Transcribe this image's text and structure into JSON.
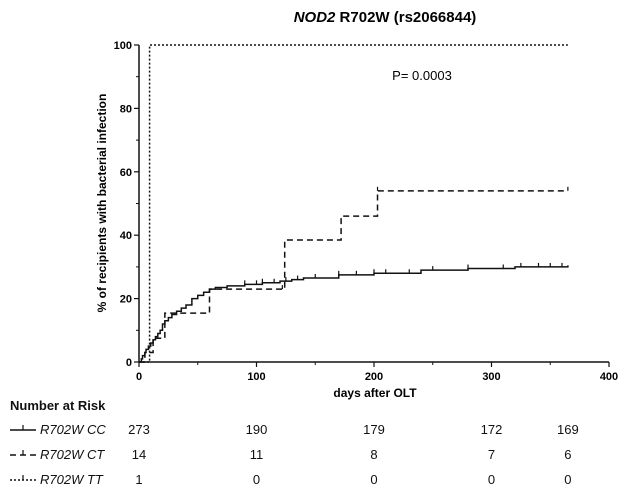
{
  "chart_data": {
    "type": "line",
    "title_gene": "NOD2",
    "title_rest": "R702W (rs2066844)",
    "xlabel": "days after OLT",
    "ylabel": "% of recipients with bacterial infection",
    "xlim": [
      0,
      400
    ],
    "ylim": [
      0,
      100
    ],
    "xticks": [
      "0",
      "100",
      "200",
      "300",
      "400"
    ],
    "yticks": [
      "0",
      "20",
      "40",
      "60",
      "80",
      "100"
    ],
    "annotation": "P= 0.0003",
    "grid": false,
    "series": [
      {
        "name": "R702W CC",
        "style": "solid",
        "x": [
          0,
          2,
          3,
          5,
          6,
          8,
          10,
          12,
          14,
          16,
          18,
          20,
          22,
          25,
          28,
          32,
          36,
          40,
          45,
          50,
          55,
          60,
          65,
          75,
          90,
          105,
          120,
          130,
          140,
          170,
          200,
          240,
          280,
          320,
          365
        ],
        "y": [
          0,
          1,
          2,
          3,
          4,
          5,
          6,
          7,
          8,
          9,
          10,
          12,
          13,
          14,
          15,
          16,
          17,
          18,
          20,
          21,
          22,
          23,
          23.5,
          24,
          24.5,
          25,
          25.5,
          26,
          26.5,
          27.5,
          28,
          29,
          29.5,
          30,
          30.5
        ],
        "censor_x": [
          90,
          100,
          105,
          115,
          125,
          135,
          150,
          170,
          185,
          200,
          210,
          230,
          250,
          280,
          310,
          325,
          340,
          350,
          360
        ]
      },
      {
        "name": "R702W CT",
        "style": "dashed",
        "x": [
          0,
          5,
          12,
          22,
          60,
          122,
          124,
          172,
          203,
          365
        ],
        "y": [
          0,
          3,
          7.5,
          15.4,
          23,
          23,
          38.5,
          46,
          54,
          54
        ],
        "censor_x": [
          122,
          203,
          365
        ]
      },
      {
        "name": "R702W TT",
        "style": "dotted",
        "x": [
          0,
          9,
          9,
          365
        ],
        "y": [
          0,
          0,
          100,
          100
        ],
        "censor_x": []
      }
    ]
  },
  "risk_table": {
    "heading": "Number at Risk",
    "columns_x": [
      0,
      100,
      200,
      300,
      365
    ],
    "rows": [
      {
        "label": "R702W CC",
        "style": "solid",
        "values": [
          "273",
          "190",
          "179",
          "172",
          "169"
        ]
      },
      {
        "label": "R702W CT",
        "style": "dashed",
        "values": [
          "14",
          "11",
          "8",
          "7",
          "6"
        ]
      },
      {
        "label": "R702W TT",
        "style": "dotted",
        "values": [
          "1",
          "0",
          "0",
          "0",
          "0"
        ]
      }
    ]
  }
}
